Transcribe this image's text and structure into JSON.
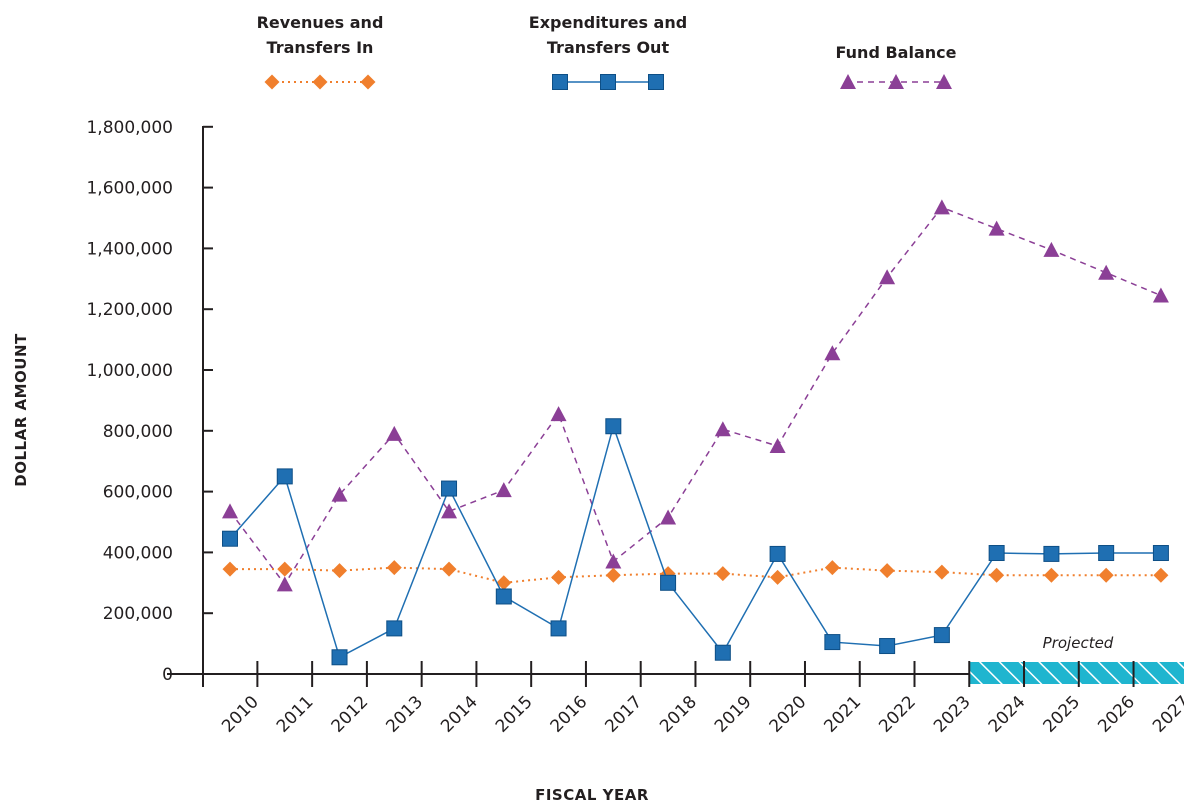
{
  "chart_data": {
    "type": "line",
    "xlabel": "FISCAL YEAR",
    "ylabel": "DOLLAR AMOUNT",
    "categories": [
      "2010",
      "2011",
      "2012",
      "2013",
      "2014",
      "2015",
      "2016",
      "2017",
      "2018",
      "2019",
      "2020",
      "2021",
      "2022",
      "2023",
      "2024",
      "2025",
      "2026",
      "2027"
    ],
    "ylim": [
      0,
      1800000
    ],
    "yticks": [
      0,
      200000,
      400000,
      600000,
      800000,
      1000000,
      1200000,
      1400000,
      1600000,
      1800000
    ],
    "ytick_labels": [
      "0",
      "200,000",
      "400,000",
      "600,000",
      "800,000",
      "1,000,000",
      "1,200,000",
      "1,400,000",
      "1,600,000",
      "1,800,000"
    ],
    "legend_position": "top",
    "grid": false,
    "projected_label": "Projected",
    "projected_from": "2024",
    "series": [
      {
        "name": "Revenues and Transfers In",
        "name_lines": [
          "Revenues and",
          "Transfers In"
        ],
        "color": "#f07f2d",
        "marker": "diamond",
        "line": "dotted",
        "values": [
          345000,
          345000,
          340000,
          350000,
          345000,
          300000,
          318000,
          325000,
          330000,
          330000,
          318000,
          350000,
          340000,
          335000,
          325000,
          325000,
          325000,
          325000
        ]
      },
      {
        "name": "Expenditures and Transfers Out",
        "name_lines": [
          "Expenditures and",
          "Transfers Out"
        ],
        "color": "#1f6fb2",
        "marker": "square",
        "line": "solid",
        "values": [
          445000,
          650000,
          55000,
          150000,
          610000,
          255000,
          150000,
          815000,
          300000,
          70000,
          395000,
          105000,
          92000,
          128000,
          398000,
          395000,
          398000,
          398000
        ]
      },
      {
        "name": "Fund Balance",
        "name_lines": [
          "Fund Balance"
        ],
        "color": "#8b3f96",
        "marker": "triangle",
        "line": "dashed",
        "values": [
          535000,
          295000,
          590000,
          790000,
          535000,
          605000,
          855000,
          370000,
          515000,
          805000,
          750000,
          1055000,
          1305000,
          1535000,
          1465000,
          1395000,
          1320000,
          1245000
        ]
      }
    ]
  }
}
